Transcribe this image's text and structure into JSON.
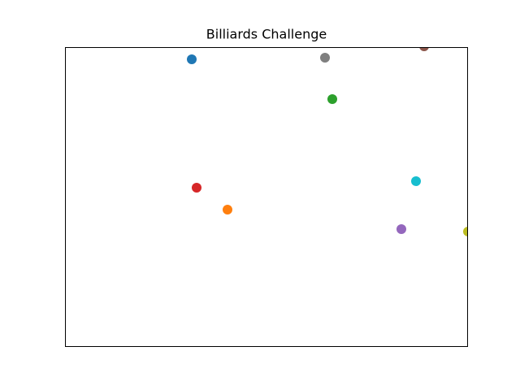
{
  "title": "Billiards Challenge",
  "balls": [
    {
      "color": "#1f77b4"
    },
    {
      "color": "#ff7f0e"
    },
    {
      "color": "#2ca02c"
    },
    {
      "color": "#d62728"
    },
    {
      "color": "#9467bd"
    },
    {
      "color": "#8c564b"
    },
    {
      "color": "#7f7f7f"
    },
    {
      "color": "#bcbd22"
    },
    {
      "color": "#17becf"
    }
  ]
}
